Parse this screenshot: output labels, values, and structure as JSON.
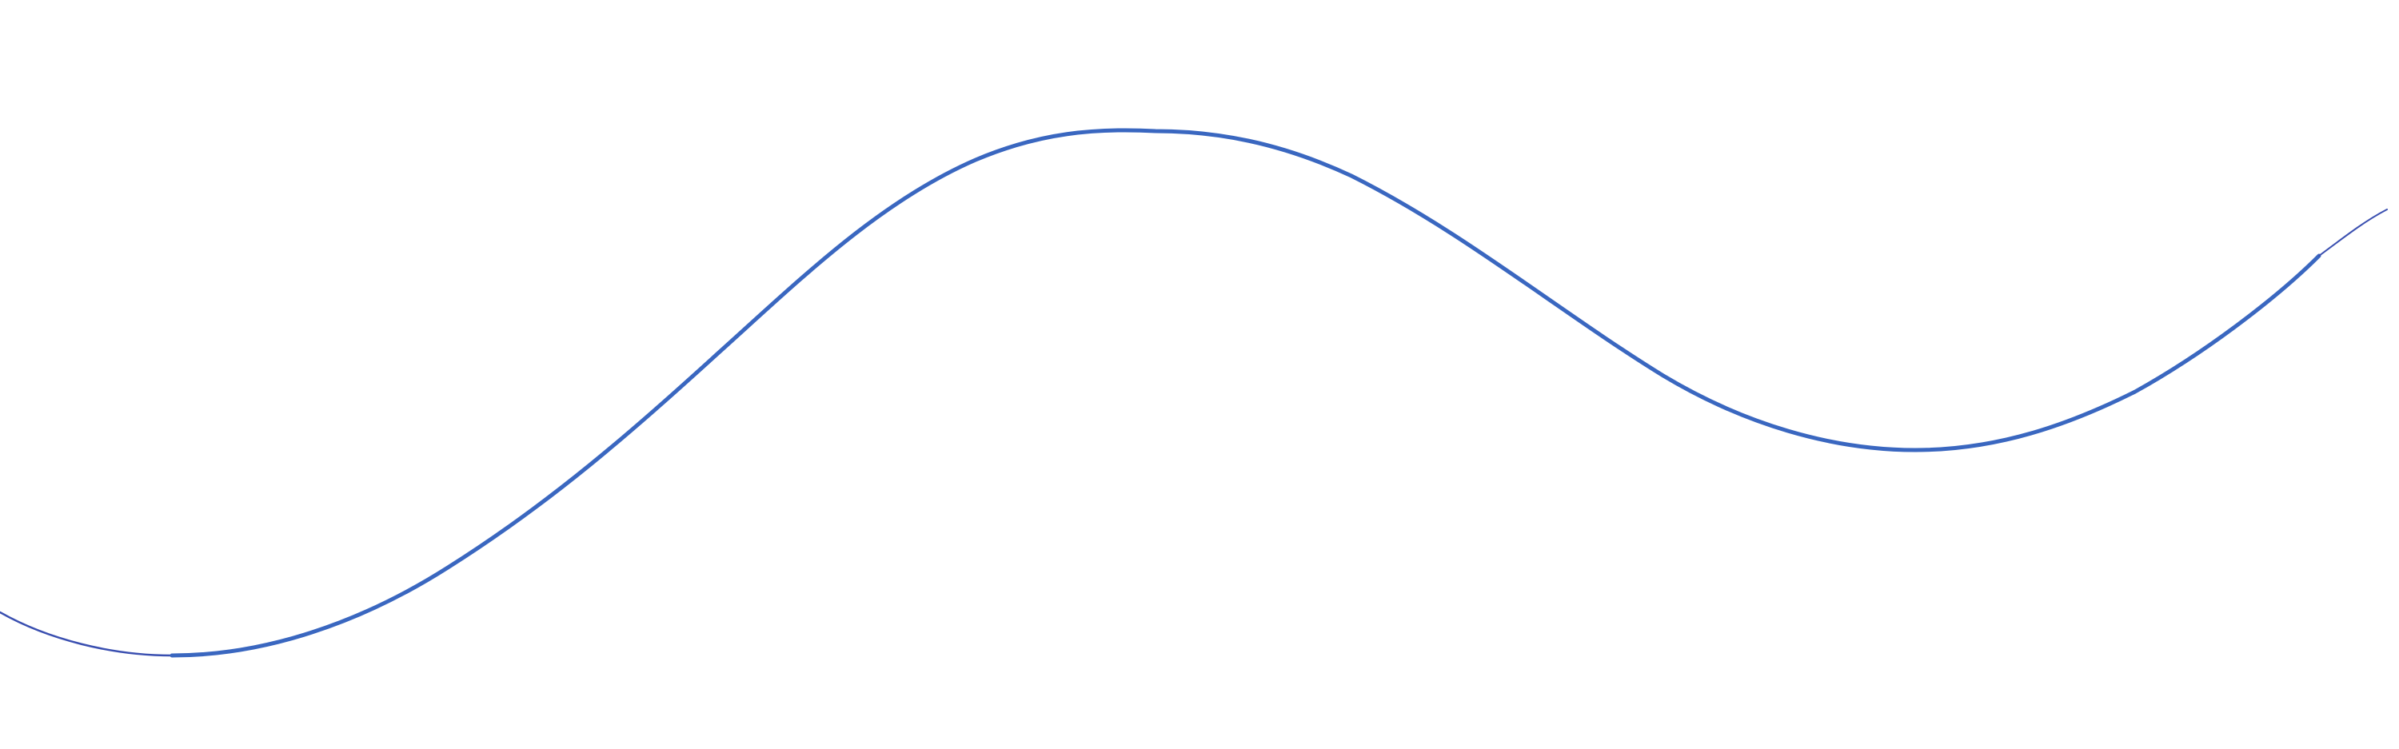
{
  "graphic": {
    "description_kind": "decorative-wave",
    "colors": {
      "background": "#ffffff",
      "stroke_light": "#5b7fd6",
      "stroke_main": "#3a67c0",
      "stroke_dark": "#3a4fb0"
    }
  }
}
